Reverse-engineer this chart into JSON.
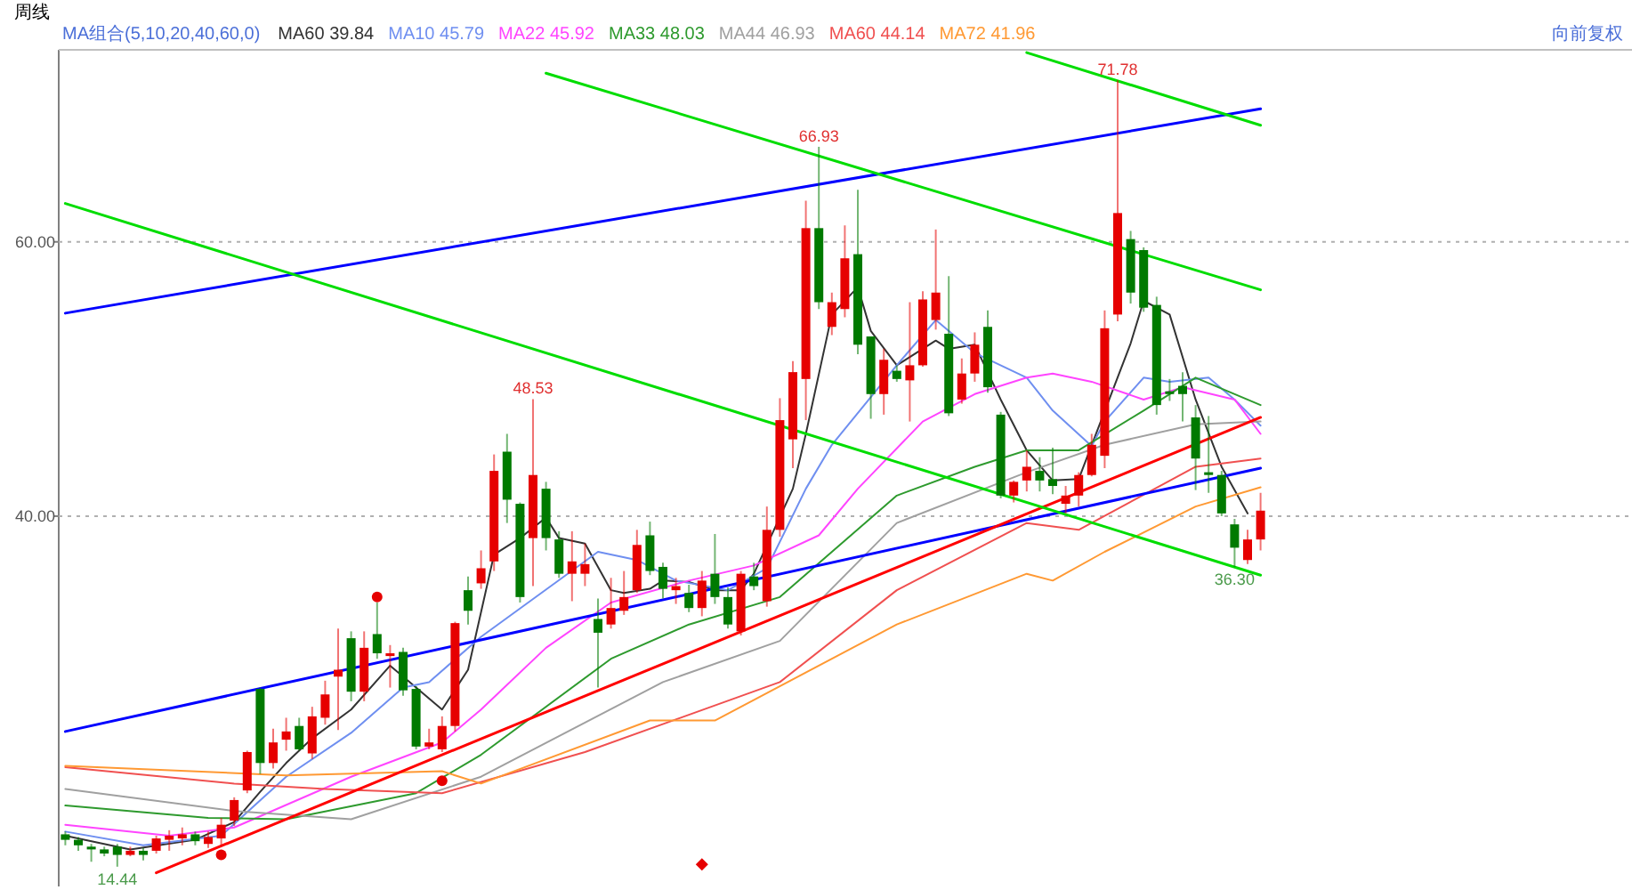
{
  "chart_data": {
    "type": "candlestick",
    "title": "周线",
    "legend_title": "MA组合(5,10,20,40,60,0)",
    "categories": [
      null,
      null,
      null,
      null,
      null,
      null,
      null,
      null,
      null,
      null,
      null,
      null,
      null,
      null,
      null,
      null,
      null,
      null,
      null,
      null,
      null,
      null,
      null,
      null,
      null,
      null,
      null,
      null,
      null,
      null,
      null,
      null,
      null,
      null,
      null,
      null,
      null,
      null,
      null,
      null,
      null,
      null,
      null,
      null,
      null,
      null,
      null,
      null,
      null,
      null,
      null,
      null,
      null,
      null,
      null,
      null,
      null,
      null,
      null,
      null,
      null,
      null,
      null,
      null,
      null,
      null,
      null,
      null,
      null,
      null,
      null,
      null,
      null,
      null,
      null,
      null,
      null,
      null,
      null,
      null,
      null,
      null,
      null,
      null,
      null,
      null,
      null,
      null,
      null,
      null,
      null,
      null,
      null
    ],
    "ohlc": [
      [
        16.8,
        17.0,
        16.0,
        16.4
      ],
      [
        16.4,
        16.6,
        15.6,
        16.0
      ],
      [
        15.9,
        16.1,
        14.8,
        15.7
      ],
      [
        15.7,
        15.9,
        15.2,
        15.4
      ],
      [
        15.9,
        16.1,
        14.44,
        15.3
      ],
      [
        15.3,
        15.9,
        15.2,
        15.6
      ],
      [
        15.6,
        15.8,
        14.9,
        15.3
      ],
      [
        15.6,
        16.7,
        15.4,
        16.5
      ],
      [
        16.4,
        17.1,
        15.6,
        16.7
      ],
      [
        16.5,
        17.3,
        16.0,
        16.8
      ],
      [
        16.8,
        17.0,
        16.0,
        16.3
      ],
      [
        16.1,
        17.0,
        15.8,
        16.6
      ],
      [
        16.5,
        18.0,
        15.9,
        17.5
      ],
      [
        17.8,
        19.5,
        17.4,
        19.3
      ],
      [
        20.0,
        22.9,
        19.8,
        22.8
      ],
      [
        27.4,
        27.5,
        21.2,
        22.0
      ],
      [
        22.0,
        24.5,
        21.6,
        23.5
      ],
      [
        23.7,
        25.3,
        22.9,
        24.3
      ],
      [
        24.7,
        25.3,
        22.9,
        23.0
      ],
      [
        22.7,
        26.1,
        22.3,
        25.4
      ],
      [
        25.3,
        28.0,
        24.8,
        27.0
      ],
      [
        28.3,
        31.8,
        24.4,
        28.8
      ],
      [
        31.1,
        31.6,
        26.5,
        27.2
      ],
      [
        27.2,
        31.6,
        26.5,
        30.4
      ],
      [
        31.4,
        33.7,
        29.6,
        30.0
      ],
      [
        29.8,
        30.6,
        27.5,
        30.0
      ],
      [
        30.1,
        30.4,
        26.9,
        27.3
      ],
      [
        27.4,
        27.6,
        23.0,
        23.2
      ],
      [
        23.2,
        24.5,
        23.0,
        23.5
      ],
      [
        23.0,
        25.4,
        22.8,
        24.7
      ],
      [
        24.7,
        32.3,
        24.3,
        32.2
      ],
      [
        34.6,
        35.6,
        32.1,
        33.1
      ],
      [
        35.1,
        37.5,
        34.7,
        36.2
      ],
      [
        36.7,
        44.5,
        36.0,
        43.3
      ],
      [
        44.7,
        46.0,
        39.5,
        41.2
      ],
      [
        40.9,
        41.0,
        33.7,
        34.1
      ],
      [
        38.4,
        48.53,
        34.9,
        43.0
      ],
      [
        42.0,
        42.5,
        37.5,
        38.4
      ],
      [
        38.3,
        38.9,
        35.5,
        35.8
      ],
      [
        35.8,
        38.9,
        33.8,
        36.7
      ],
      [
        35.8,
        38.0,
        34.9,
        36.5
      ],
      [
        32.5,
        34.0,
        27.5,
        31.5
      ],
      [
        32.1,
        35.5,
        31.8,
        33.3
      ],
      [
        33.1,
        36.0,
        32.8,
        34.1
      ],
      [
        34.6,
        39.0,
        34.4,
        37.9
      ],
      [
        38.6,
        39.6,
        35.7,
        36.0
      ],
      [
        36.3,
        36.6,
        34.0,
        34.7
      ],
      [
        34.6,
        35.5,
        33.6,
        34.9
      ],
      [
        34.4,
        35.0,
        33.0,
        33.3
      ],
      [
        33.3,
        36.0,
        32.7,
        35.3
      ],
      [
        35.8,
        38.7,
        33.6,
        34.1
      ],
      [
        34.1,
        34.8,
        31.8,
        32.1
      ],
      [
        31.6,
        36.0,
        31.3,
        35.8
      ],
      [
        35.6,
        36.6,
        34.6,
        34.9
      ],
      [
        33.8,
        40.7,
        33.4,
        39.0
      ],
      [
        39.0,
        48.6,
        38.5,
        47.0
      ],
      [
        45.6,
        51.3,
        43.5,
        50.5
      ],
      [
        50.0,
        63.0,
        47.0,
        61.0
      ],
      [
        61.0,
        66.93,
        55.1,
        55.6
      ],
      [
        53.8,
        56.3,
        53.2,
        55.6
      ],
      [
        55.1,
        61.2,
        54.5,
        58.8
      ],
      [
        59.1,
        63.8,
        51.8,
        52.5
      ],
      [
        53.1,
        53.1,
        47.1,
        48.9
      ],
      [
        48.9,
        52.2,
        47.4,
        51.4
      ],
      [
        50.6,
        51.0,
        49.8,
        50.0
      ],
      [
        49.9,
        55.6,
        46.9,
        51.0
      ],
      [
        51.0,
        56.4,
        50.9,
        55.8
      ],
      [
        54.3,
        60.9,
        53.6,
        56.3
      ],
      [
        53.3,
        57.5,
        47.3,
        47.5
      ],
      [
        48.5,
        51.5,
        48.2,
        50.4
      ],
      [
        50.4,
        53.4,
        49.8,
        52.5
      ],
      [
        53.8,
        55.0,
        49.0,
        49.4
      ],
      [
        47.4,
        47.6,
        41.3,
        41.5
      ],
      [
        41.5,
        42.6,
        41.0,
        42.5
      ],
      [
        42.6,
        44.8,
        41.8,
        43.6
      ],
      [
        43.3,
        44.3,
        41.8,
        42.6
      ],
      [
        42.7,
        45.0,
        41.6,
        42.2
      ],
      [
        40.9,
        42.2,
        40.2,
        41.5
      ],
      [
        41.5,
        43.2,
        40.7,
        43.0
      ],
      [
        43.0,
        46.0,
        42.9,
        45.2
      ],
      [
        44.4,
        55.0,
        43.5,
        53.7
      ],
      [
        54.7,
        71.78,
        54.2,
        62.1
      ],
      [
        60.2,
        60.8,
        55.5,
        56.3
      ],
      [
        59.4,
        59.6,
        54.9,
        55.2
      ],
      [
        55.4,
        56.0,
        47.4,
        48.1
      ],
      [
        49.1,
        50.0,
        48.4,
        48.9
      ],
      [
        49.5,
        50.5,
        46.9,
        48.9
      ],
      [
        47.2,
        48.1,
        41.9,
        44.2
      ],
      [
        43.2,
        47.3,
        41.7,
        43.0
      ],
      [
        43.0,
        43.3,
        40.0,
        40.2
      ],
      [
        39.4,
        39.8,
        36.3,
        37.7
      ],
      [
        36.8,
        39.0,
        36.5,
        38.3
      ],
      [
        38.3,
        41.7,
        37.5,
        40.4
      ]
    ],
    "colors": [
      "#007a00",
      "#007a00",
      "#007a00",
      "#007a00",
      "#007a00",
      "#e60000",
      "#007a00",
      "#e60000",
      "#e60000",
      "#e60000",
      "#007a00",
      "#e60000",
      "#e60000",
      "#e60000",
      "#e60000",
      "#007a00",
      "#e60000",
      "#e60000",
      "#007a00",
      "#e60000",
      "#e60000",
      "#e60000",
      "#007a00",
      "#e60000",
      "#007a00",
      "#e60000",
      "#007a00",
      "#007a00",
      "#e60000",
      "#e60000",
      "#e60000",
      "#007a00",
      "#e60000",
      "#e60000",
      "#007a00",
      "#007a00",
      "#e60000",
      "#007a00",
      "#007a00",
      "#e60000",
      "#e60000",
      "#007a00",
      "#e60000",
      "#e60000",
      "#e60000",
      "#007a00",
      "#007a00",
      "#e60000",
      "#007a00",
      "#e60000",
      "#007a00",
      "#007a00",
      "#e60000",
      "#007a00",
      "#e60000",
      "#e60000",
      "#e60000",
      "#e60000",
      "#007a00",
      "#e60000",
      "#e60000",
      "#007a00",
      "#007a00",
      "#e60000",
      "#007a00",
      "#e60000",
      "#e60000",
      "#e60000",
      "#007a00",
      "#e60000",
      "#e60000",
      "#007a00",
      "#007a00",
      "#e60000",
      "#e60000",
      "#007a00",
      "#007a00",
      "#e60000",
      "#e60000",
      "#e60000",
      "#e60000",
      "#e60000",
      "#007a00",
      "#007a00",
      "#007a00",
      "#007a00",
      "#007a00",
      "#007a00",
      "#007a00",
      "#007a00",
      "#007a00",
      "#e60000",
      "#e60000"
    ],
    "series": [
      {
        "type": "line",
        "name": "MA60 39.84",
        "color": "#333333",
        "values": [
          16.7,
          null,
          null,
          null,
          null,
          15.7,
          null,
          null,
          null,
          null,
          16.4,
          null,
          null,
          17.7,
          null,
          19.9,
          null,
          22.0,
          null,
          23.8,
          null,
          null,
          25.9,
          null,
          null,
          29.1,
          null,
          27.5,
          null,
          25.9,
          null,
          28.8,
          null,
          37.2,
          null,
          38.4,
          null,
          39.9,
          38.4,
          null,
          38.0,
          null,
          34.6,
          34.4,
          null,
          34.7,
          35.3,
          null,
          35.2,
          null,
          34.6,
          null,
          34.6,
          35.8,
          null,
          null,
          42.0,
          46.0,
          null,
          54.7,
          null,
          56.7,
          53.5,
          null,
          51.0,
          null,
          null,
          52.8,
          52.2,
          null,
          52.5,
          null,
          48.5,
          null,
          44.8,
          null,
          42.6,
          null,
          42.7,
          null,
          null,
          null,
          52.6,
          55.7,
          null,
          54.7,
          null,
          48.5,
          null,
          43.6,
          null,
          40.2,
          null
        ]
      },
      {
        "type": "line",
        "name": "MA10 45.79",
        "color": "#6f8ff0",
        "values": [
          17.0,
          null,
          null,
          null,
          null,
          null,
          16.0,
          null,
          null,
          null,
          null,
          null,
          16.7,
          null,
          null,
          null,
          null,
          21.0,
          null,
          null,
          null,
          null,
          24.2,
          null,
          null,
          null,
          27.5,
          null,
          27.9,
          null,
          null,
          null,
          31.2,
          null,
          null,
          null,
          null,
          null,
          null,
          null,
          null,
          37.4,
          null,
          null,
          36.8,
          null,
          null,
          35.3,
          null,
          null,
          null,
          34.6,
          null,
          null,
          36.2,
          null,
          null,
          42.0,
          null,
          45.2,
          null,
          null,
          null,
          null,
          51.0,
          null,
          null,
          54.3,
          null,
          null,
          51.9,
          null,
          null,
          null,
          50.1,
          null,
          47.7,
          null,
          null,
          45.1,
          46.9,
          null,
          null,
          50.1,
          null,
          49.8,
          null,
          null,
          50.1,
          null,
          48.5,
          null,
          46.6
        ]
      },
      {
        "type": "line",
        "name": "MA22 45.92",
        "color": "#ff44ff",
        "values": [
          17.5,
          null,
          null,
          null,
          null,
          null,
          null,
          null,
          16.7,
          null,
          null,
          null,
          null,
          17.3,
          null,
          null,
          null,
          null,
          null,
          null,
          null,
          null,
          21.0,
          null,
          null,
          null,
          null,
          null,
          null,
          23.5,
          null,
          null,
          25.9,
          null,
          null,
          null,
          null,
          30.4,
          null,
          null,
          null,
          null,
          33.7,
          null,
          null,
          null,
          null,
          null,
          35.3,
          null,
          null,
          null,
          null,
          36.4,
          null,
          null,
          null,
          null,
          38.6,
          null,
          null,
          42.0,
          null,
          null,
          null,
          null,
          46.9,
          null,
          null,
          null,
          48.9,
          null,
          null,
          null,
          50.1,
          null,
          50.4,
          null,
          null,
          49.8,
          null,
          null,
          null,
          48.5,
          null,
          null,
          49.4,
          null,
          null,
          null,
          48.5,
          null,
          46.0
        ]
      },
      {
        "type": "line",
        "name": "MA33 48.03",
        "color": "#2e9a2e",
        "values": [
          18.9,
          null,
          null,
          null,
          null,
          null,
          null,
          null,
          null,
          null,
          null,
          18.0,
          null,
          null,
          null,
          null,
          null,
          17.9,
          null,
          null,
          null,
          null,
          null,
          null,
          null,
          null,
          null,
          19.8,
          null,
          null,
          null,
          null,
          22.6,
          null,
          null,
          null,
          null,
          null,
          null,
          null,
          null,
          null,
          29.6,
          null,
          null,
          null,
          null,
          null,
          32.1,
          null,
          null,
          null,
          null,
          null,
          null,
          34.1,
          null,
          null,
          null,
          null,
          null,
          null,
          null,
          null,
          41.5,
          null,
          null,
          null,
          null,
          null,
          43.6,
          null,
          null,
          null,
          44.8,
          null,
          null,
          null,
          44.8,
          null,
          null,
          null,
          null,
          47.7,
          null,
          null,
          null,
          50.1,
          null,
          null,
          null,
          null,
          48.1
        ]
      },
      {
        "type": "line",
        "name": "MA44 46.93",
        "color": "#a0a0a0",
        "values": [
          20.1,
          null,
          null,
          null,
          null,
          null,
          null,
          null,
          null,
          null,
          null,
          null,
          null,
          18.5,
          null,
          null,
          null,
          null,
          null,
          null,
          null,
          null,
          17.9,
          null,
          null,
          null,
          null,
          null,
          null,
          null,
          null,
          null,
          21.0,
          null,
          null,
          null,
          null,
          null,
          null,
          null,
          null,
          null,
          null,
          null,
          null,
          null,
          27.9,
          null,
          null,
          null,
          null,
          null,
          null,
          null,
          null,
          30.9,
          null,
          null,
          null,
          null,
          null,
          null,
          null,
          null,
          39.5,
          null,
          null,
          null,
          null,
          null,
          null,
          null,
          null,
          null,
          43.2,
          null,
          null,
          null,
          null,
          null,
          45.2,
          null,
          null,
          null,
          null,
          null,
          null,
          46.7,
          null,
          null,
          null,
          null,
          46.9
        ]
      },
      {
        "type": "line",
        "name": "MA60 44.14",
        "color": "#f05050",
        "values": [
          21.7,
          null,
          null,
          null,
          null,
          null,
          null,
          null,
          null,
          null,
          null,
          null,
          null,
          20.5,
          null,
          null,
          null,
          null,
          null,
          null,
          20.1,
          null,
          null,
          null,
          null,
          null,
          null,
          null,
          null,
          19.8,
          null,
          null,
          null,
          null,
          null,
          null,
          null,
          null,
          null,
          null,
          22.8,
          null,
          null,
          null,
          null,
          null,
          null,
          null,
          null,
          null,
          null,
          null,
          null,
          null,
          null,
          27.9,
          null,
          null,
          null,
          null,
          null,
          null,
          null,
          null,
          34.6,
          null,
          null,
          null,
          null,
          null,
          null,
          null,
          null,
          null,
          39.5,
          null,
          null,
          null,
          39.0,
          null,
          null,
          null,
          null,
          null,
          null,
          null,
          null,
          43.6,
          null,
          null,
          null,
          null,
          44.2
        ]
      },
      {
        "type": "line",
        "name": "MA72 41.96",
        "color": "#ff9933",
        "values": [
          21.8,
          null,
          null,
          null,
          null,
          null,
          null,
          null,
          null,
          null,
          null,
          null,
          null,
          null,
          null,
          null,
          null,
          21.1,
          null,
          null,
          null,
          null,
          null,
          null,
          null,
          null,
          null,
          null,
          null,
          21.4,
          null,
          null,
          20.5,
          null,
          null,
          null,
          null,
          null,
          null,
          null,
          null,
          null,
          null,
          null,
          null,
          25.1,
          null,
          null,
          null,
          null,
          25.1,
          null,
          null,
          null,
          null,
          null,
          null,
          null,
          null,
          null,
          null,
          null,
          null,
          null,
          32.1,
          null,
          null,
          null,
          null,
          null,
          null,
          null,
          null,
          null,
          35.8,
          null,
          35.3,
          null,
          null,
          null,
          37.4,
          null,
          null,
          null,
          null,
          null,
          null,
          40.7,
          null,
          null,
          null,
          null,
          42.1
        ]
      },
      {
        "type": "line",
        "color": "#0000ff",
        "values": [
          54.8,
          null,
          null,
          null,
          null,
          null,
          null,
          null,
          null,
          null,
          null,
          null,
          null,
          null,
          null,
          null,
          null,
          null,
          null,
          null,
          null,
          null,
          null,
          null,
          null,
          null,
          null,
          null,
          null,
          null,
          null,
          null,
          null,
          null,
          null,
          null,
          null,
          null,
          null,
          null,
          null,
          null,
          null,
          null,
          null,
          null,
          null,
          null,
          null,
          null,
          null,
          null,
          null,
          null,
          null,
          null,
          null,
          null,
          null,
          null,
          null,
          null,
          null,
          null,
          null,
          null,
          null,
          null,
          null,
          null,
          null,
          null,
          null,
          null,
          null,
          null,
          null,
          null,
          null,
          null,
          null,
          null,
          null,
          null,
          null,
          null,
          null,
          null,
          null,
          null,
          null,
          null,
          69.7
        ]
      },
      {
        "type": "line",
        "color": "#0000ff",
        "values": [
          24.3,
          null,
          null,
          null,
          null,
          null,
          null,
          null,
          null,
          null,
          null,
          null,
          null,
          null,
          null,
          null,
          null,
          null,
          null,
          null,
          null,
          null,
          null,
          null,
          null,
          null,
          null,
          null,
          null,
          null,
          null,
          null,
          null,
          null,
          null,
          null,
          null,
          null,
          null,
          null,
          null,
          null,
          null,
          null,
          null,
          null,
          null,
          null,
          null,
          null,
          null,
          null,
          null,
          null,
          null,
          null,
          null,
          null,
          null,
          null,
          null,
          null,
          null,
          null,
          null,
          null,
          null,
          null,
          null,
          null,
          null,
          null,
          null,
          null,
          null,
          null,
          null,
          null,
          null,
          null,
          null,
          null,
          null,
          null,
          null,
          null,
          null,
          null,
          null,
          null,
          null,
          null,
          43.5
        ]
      },
      {
        "type": "line",
        "color": "#ff0000",
        "values": [
          null,
          null,
          null,
          null,
          null,
          null,
          null,
          14.0,
          null,
          null,
          null,
          null,
          null,
          null,
          null,
          null,
          null,
          null,
          null,
          null,
          null,
          null,
          null,
          null,
          null,
          null,
          null,
          null,
          null,
          null,
          null,
          null,
          null,
          null,
          null,
          null,
          null,
          null,
          null,
          null,
          null,
          null,
          null,
          null,
          null,
          null,
          null,
          null,
          null,
          null,
          null,
          null,
          null,
          null,
          null,
          null,
          null,
          null,
          null,
          null,
          null,
          null,
          null,
          null,
          null,
          null,
          null,
          null,
          null,
          null,
          null,
          null,
          null,
          null,
          null,
          null,
          null,
          null,
          null,
          null,
          null,
          null,
          null,
          null,
          null,
          null,
          null,
          null,
          null,
          null,
          null,
          null,
          47.2
        ]
      },
      {
        "type": "line",
        "color": "#00dd00",
        "values": [
          null,
          null,
          null,
          null,
          null,
          null,
          null,
          null,
          null,
          null,
          null,
          null,
          null,
          null,
          null,
          null,
          null,
          null,
          null,
          null,
          null,
          null,
          null,
          null,
          null,
          null,
          null,
          null,
          null,
          null,
          null,
          null,
          null,
          null,
          null,
          null,
          null,
          72.3,
          null,
          null,
          null,
          null,
          null,
          null,
          null,
          null,
          null,
          null,
          null,
          null,
          null,
          null,
          null,
          null,
          null,
          null,
          null,
          null,
          null,
          null,
          null,
          null,
          null,
          null,
          null,
          null,
          null,
          null,
          null,
          null,
          null,
          null,
          null,
          null,
          null,
          null,
          null,
          null,
          null,
          null,
          null,
          null,
          null,
          null,
          null,
          null,
          null,
          null,
          null,
          null,
          null,
          null,
          56.5
        ]
      },
      {
        "type": "line",
        "color": "#00dd00",
        "values": [
          null,
          null,
          null,
          null,
          null,
          null,
          null,
          null,
          null,
          null,
          null,
          null,
          null,
          null,
          null,
          null,
          null,
          null,
          null,
          null,
          null,
          null,
          null,
          null,
          null,
          null,
          null,
          null,
          null,
          null,
          null,
          null,
          null,
          null,
          null,
          null,
          null,
          null,
          null,
          null,
          null,
          null,
          null,
          null,
          null,
          null,
          null,
          null,
          null,
          null,
          null,
          null,
          null,
          null,
          null,
          null,
          null,
          null,
          null,
          null,
          null,
          null,
          null,
          null,
          null,
          null,
          null,
          null,
          null,
          null,
          null,
          null,
          null,
          null,
          73.8,
          null,
          null,
          null,
          null,
          null,
          null,
          null,
          null,
          null,
          null,
          null,
          null,
          null,
          null,
          null,
          null,
          null,
          68.5
        ]
      },
      {
        "type": "line",
        "color": "#00dd00",
        "values": [
          62.8,
          null,
          null,
          null,
          null,
          null,
          null,
          null,
          null,
          null,
          null,
          null,
          null,
          null,
          null,
          null,
          null,
          null,
          null,
          null,
          null,
          null,
          null,
          null,
          null,
          null,
          null,
          null,
          null,
          null,
          null,
          null,
          null,
          null,
          null,
          null,
          null,
          null,
          null,
          null,
          null,
          null,
          null,
          null,
          null,
          null,
          null,
          null,
          null,
          null,
          null,
          null,
          null,
          null,
          null,
          null,
          null,
          null,
          null,
          null,
          null,
          null,
          null,
          null,
          null,
          null,
          null,
          null,
          null,
          null,
          null,
          null,
          null,
          null,
          null,
          null,
          null,
          null,
          null,
          null,
          null,
          null,
          null,
          null,
          null,
          null,
          null,
          null,
          null,
          null,
          null,
          null,
          35.7
        ]
      },
      {
        "type": "scatter",
        "color": "#e60000",
        "marker": "circle",
        "values": [
          null,
          null,
          null,
          null,
          null,
          null,
          null,
          null,
          null,
          null,
          null,
          null,
          15.3,
          null,
          null,
          null,
          null,
          null,
          null,
          null,
          null,
          null,
          null,
          null,
          34.1,
          null,
          null,
          null,
          null,
          20.7,
          null,
          null,
          null,
          null,
          null,
          null,
          null,
          null,
          null,
          null,
          null,
          null,
          null,
          null,
          null,
          null,
          null,
          null,
          null,
          null,
          null,
          null,
          null,
          null,
          null,
          null,
          null,
          null,
          null,
          null,
          null,
          null,
          null,
          null,
          null,
          null,
          null,
          null,
          null,
          null,
          null,
          null,
          null,
          null,
          null,
          null,
          null,
          null,
          null,
          null,
          null,
          null,
          null,
          null,
          null,
          null,
          null,
          null,
          null,
          null,
          null,
          null,
          null
        ]
      },
      {
        "type": "scatter",
        "color": "#e60000",
        "marker": "diamond",
        "values": [
          null,
          null,
          null,
          null,
          null,
          null,
          null,
          null,
          null,
          null,
          null,
          null,
          null,
          null,
          null,
          null,
          null,
          null,
          null,
          null,
          null,
          null,
          null,
          null,
          null,
          null,
          null,
          null,
          null,
          null,
          null,
          null,
          null,
          null,
          null,
          null,
          null,
          null,
          null,
          null,
          null,
          null,
          null,
          null,
          null,
          null,
          null,
          null,
          null,
          14.6,
          null,
          null,
          null,
          null,
          null,
          null,
          null,
          null,
          null,
          null,
          null,
          null,
          null,
          null,
          null,
          null,
          null,
          null,
          null,
          null,
          null,
          null,
          null,
          null,
          null,
          null,
          null,
          null,
          null,
          null,
          null,
          null,
          null,
          null,
          null,
          null,
          null,
          null,
          null,
          null,
          null,
          null,
          null
        ]
      }
    ],
    "ylim": [
      13,
      74
    ],
    "yticks": [
      {
        "value": 60,
        "label": "60.00"
      },
      {
        "value": 40,
        "label": "40.00"
      }
    ],
    "grid": "y",
    "tick_labels": "y",
    "annotations": [
      "向前复权",
      {
        "text": "48.53",
        "y": 48.53
      },
      {
        "text": "66.93",
        "y": 66.93
      },
      {
        "text": "71.78",
        "y": 71.78
      },
      {
        "text": "36.30",
        "y": 36.3
      },
      {
        "text": "14.44",
        "y": 14.44
      }
    ]
  }
}
